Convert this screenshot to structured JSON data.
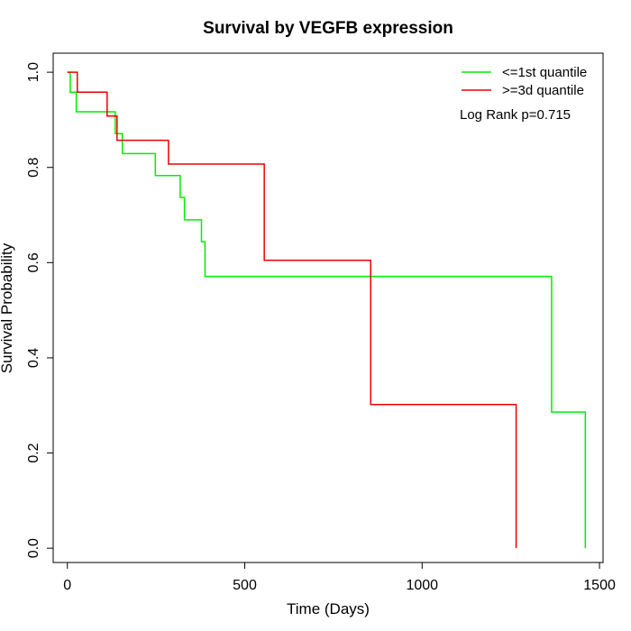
{
  "chart_data": {
    "type": "line",
    "title": "Survival by VEGFB expression",
    "xlabel": "Time (Days)",
    "ylabel": "Survival Probability",
    "xlim": [
      -40,
      1510
    ],
    "ylim": [
      -0.03,
      1.04
    ],
    "xticks": [
      0,
      500,
      1000,
      1500
    ],
    "xtick_labels": [
      "0",
      "500",
      "1000",
      "1500"
    ],
    "yticks": [
      0.0,
      0.2,
      0.4,
      0.6,
      0.8,
      1.0
    ],
    "ytick_labels": [
      "0.0",
      "0.2",
      "0.4",
      "0.6",
      "0.8",
      "1.0"
    ],
    "grid": false,
    "legend_position": "top-right",
    "annotation": "Log Rank p=0.715",
    "series": [
      {
        "name": "<=1st quantile",
        "color": "#00ee00",
        "steps": [
          [
            0,
            1.0
          ],
          [
            8,
            0.958
          ],
          [
            25,
            0.917
          ],
          [
            135,
            0.871
          ],
          [
            155,
            0.829
          ],
          [
            248,
            0.783
          ],
          [
            318,
            0.737
          ],
          [
            330,
            0.69
          ],
          [
            378,
            0.644
          ],
          [
            388,
            0.571
          ],
          [
            1365,
            0.286
          ],
          [
            1460,
            0.0
          ]
        ]
      },
      {
        "name": ">=3d quantile",
        "color": "#ee0000",
        "steps": [
          [
            0,
            1.0
          ],
          [
            28,
            0.958
          ],
          [
            112,
            0.908
          ],
          [
            140,
            0.857
          ],
          [
            285,
            0.807
          ],
          [
            555,
            0.605
          ],
          [
            855,
            0.302
          ],
          [
            1265,
            0.0
          ]
        ]
      }
    ]
  }
}
